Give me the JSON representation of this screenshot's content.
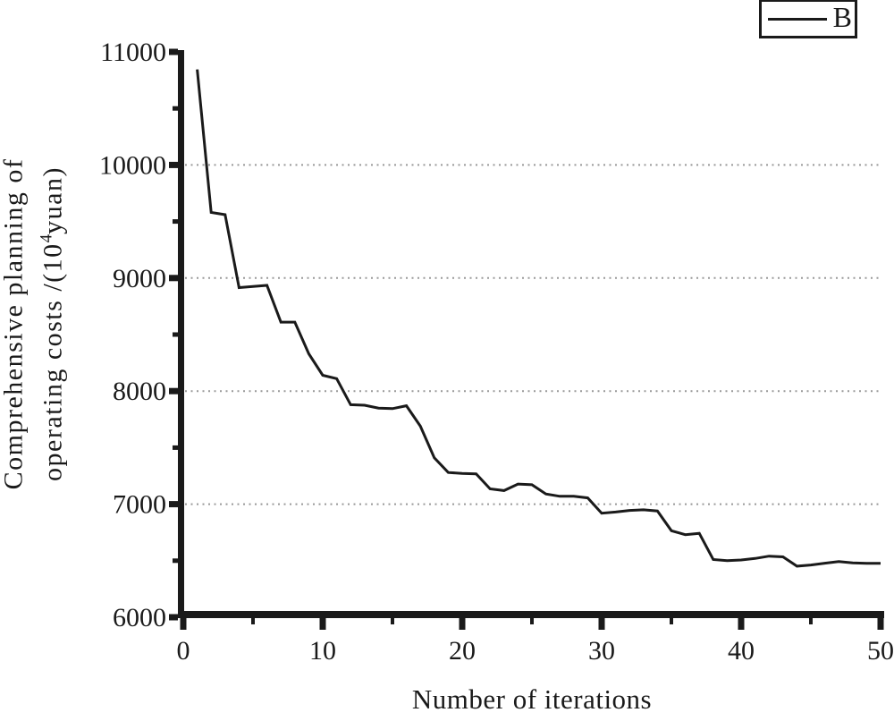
{
  "figure": {
    "legend": {
      "series_label": "B"
    },
    "x_axis_label": "Number of iterations",
    "y_axis_label_line1": "Comprehensive planning of",
    "y_axis_label_line2_prefix": "operating costs /(10",
    "y_axis_label_sup": "4",
    "y_axis_label_line2_suffix": "yuan)"
  },
  "chart_data": {
    "type": "line",
    "title": "",
    "xlabel": "Number of iterations",
    "ylabel": "Comprehensive planning of operating costs /(10^4 yuan)",
    "xlim": [
      0,
      50
    ],
    "ylim": [
      6000,
      11000
    ],
    "x_major_ticks": [
      0,
      10,
      20,
      30,
      40,
      50
    ],
    "x_minor_ticks": [
      5,
      15,
      25,
      35,
      45
    ],
    "y_major_ticks": [
      6000,
      7000,
      8000,
      9000,
      10000,
      11000
    ],
    "y_minor_ticks": [
      6500,
      7500,
      8500,
      9500,
      10500
    ],
    "gridlines_y": [
      7000,
      8000,
      9000,
      10000
    ],
    "grid_style": "dotted",
    "legend_position": "top-right",
    "series": [
      {
        "name": "B",
        "x": [
          1,
          2,
          3,
          4,
          5,
          6,
          7,
          8,
          9,
          10,
          11,
          12,
          13,
          14,
          15,
          16,
          17,
          18,
          19,
          20,
          21,
          22,
          23,
          24,
          25,
          26,
          27,
          28,
          29,
          30,
          31,
          32,
          33,
          34,
          35,
          36,
          37,
          38,
          39,
          40,
          41,
          42,
          43,
          44,
          45,
          46,
          47,
          48,
          49,
          50
        ],
        "values": [
          10845,
          9580,
          9560,
          8915,
          8925,
          8935,
          8610,
          8610,
          8330,
          8140,
          8110,
          7880,
          7875,
          7850,
          7845,
          7870,
          7690,
          7410,
          7280,
          7272,
          7268,
          7135,
          7120,
          7178,
          7172,
          7090,
          7070,
          7070,
          7055,
          6920,
          6930,
          6945,
          6950,
          6940,
          6765,
          6730,
          6742,
          6510,
          6500,
          6506,
          6520,
          6540,
          6534,
          6452,
          6462,
          6478,
          6492,
          6480,
          6477,
          6477
        ]
      }
    ],
    "colors": {
      "line": "#1a1a1a",
      "axis": "#1a1a1a",
      "grid": "#999999",
      "background": "#ffffff"
    }
  }
}
